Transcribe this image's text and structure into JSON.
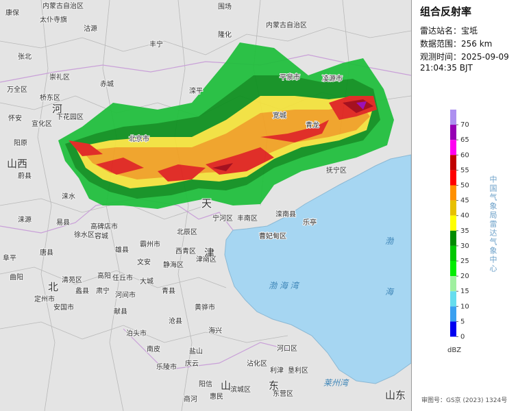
{
  "panel": {
    "title": "组合反射率",
    "station_label": "雷达站名：",
    "station": "宝坻",
    "range_label": "数据范围：",
    "range": "256 km",
    "time_label": "观测时间：",
    "date": "2025-09-09",
    "time": "21:04:35 BJT",
    "agency": "中国气象局雷达气象中心",
    "review": "审图号：GS京 (2023) 1324号"
  },
  "legend": {
    "unit": "dBZ",
    "ticks": [
      70,
      65,
      60,
      55,
      50,
      45,
      40,
      35,
      30,
      25,
      20,
      15,
      10,
      5,
      0
    ],
    "colors": [
      "#ad90f0",
      "#9600b4",
      "#ff00f0",
      "#c00000",
      "#ff0000",
      "#ff9000",
      "#e7c000",
      "#ffff00",
      "#008c00",
      "#00c800",
      "#00ec00",
      "#a0f0a0",
      "#66ddee",
      "#3aa0f0",
      "#0000f0"
    ]
  },
  "map": {
    "labels": [
      "康保",
      "内蒙古自治区",
      "太仆寺旗",
      "沽源",
      "围场",
      "内蒙古自治区",
      "隆化",
      "丰宁",
      "张北",
      "崇礼区",
      "赤城",
      "滦平",
      "平泉市",
      "凌源市",
      "万全区",
      "桥东区",
      "河",
      "怀安",
      "宣化区",
      "下花园区",
      "北京市",
      "阳原",
      "山西",
      "蔚县",
      "宽城",
      "青龙",
      "抚宁区",
      "涞水",
      "易县",
      "涞源",
      "阜平",
      "曲阳",
      "唐县",
      "定州市",
      "徐水区",
      "容城",
      "雄县",
      "高碑店市",
      "霸州市",
      "文安",
      "静海区",
      "西青区",
      "津南区",
      "北辰区",
      "宁河区",
      "丰南区",
      "曹妃甸区",
      "滦南县",
      "乐亭",
      "任丘市",
      "河间市",
      "大城",
      "青县",
      "沧县",
      "黄骅市",
      "泊头市",
      "献县",
      "肃宁",
      "高阳",
      "蠡县",
      "清苑区",
      "安国市",
      "南皮",
      "盐山",
      "海兴",
      "乐陵市",
      "庆云",
      "阳信",
      "沾化区",
      "利津",
      "垦利区",
      "东营区",
      "河口区",
      "滨城区",
      "惠民",
      "商河",
      "北",
      "山",
      "东",
      "山东",
      "渤",
      "海",
      "渤 海 湾",
      "莱州湾",
      "天",
      "津"
    ]
  }
}
